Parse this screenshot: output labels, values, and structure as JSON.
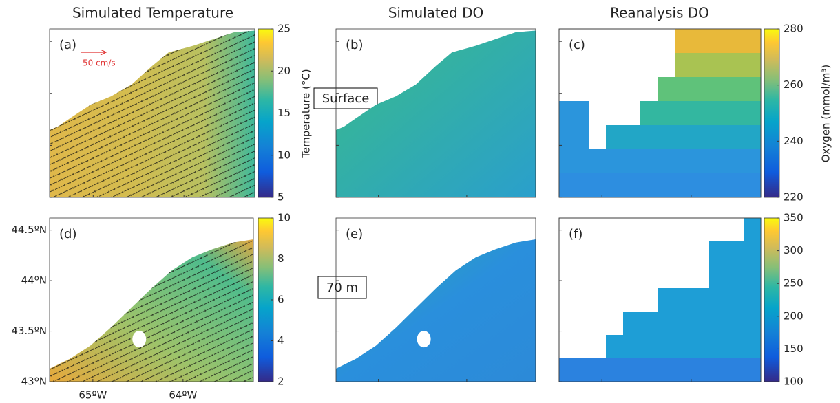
{
  "column_titles": [
    "Simulated Temperature",
    "Simulated DO",
    "Reanalysis DO"
  ],
  "row_labels": [
    "Surface",
    "70 m"
  ],
  "panels": [
    {
      "label": "(a)"
    },
    {
      "label": "(b)"
    },
    {
      "label": "(c)"
    },
    {
      "label": "(d)"
    },
    {
      "label": "(e)"
    },
    {
      "label": "(f)"
    }
  ],
  "vector_scale_label": "50 cm/s",
  "colorbars": [
    {
      "label": "Temperature (°C)",
      "range": [
        5,
        25
      ],
      "ticks": [
        5,
        10,
        15,
        20,
        25
      ]
    },
    {
      "label": "Oxygen (mmol/m³)",
      "range": [
        220,
        280
      ],
      "ticks": [
        220,
        240,
        260,
        280
      ]
    },
    {
      "range": [
        2,
        10
      ],
      "ticks": [
        2,
        4,
        6,
        8,
        10
      ]
    },
    {
      "range": [
        100,
        350
      ],
      "ticks": [
        100,
        150,
        200,
        250,
        300,
        350
      ]
    }
  ],
  "axes": {
    "xlim": [
      -65.48,
      -63.22
    ],
    "xticks": [
      {
        "value": -65,
        "label": "65ºW"
      },
      {
        "value": -64,
        "label": "64ºW"
      }
    ],
    "ylim": [
      43,
      44.62
    ],
    "yticks": [
      {
        "value": 43,
        "label": "43ºN"
      },
      {
        "value": 43.5,
        "label": "43.5ºN"
      },
      {
        "value": 44,
        "label": "44ºN"
      },
      {
        "value": 44.5,
        "label": "44.5ºN"
      }
    ]
  }
}
